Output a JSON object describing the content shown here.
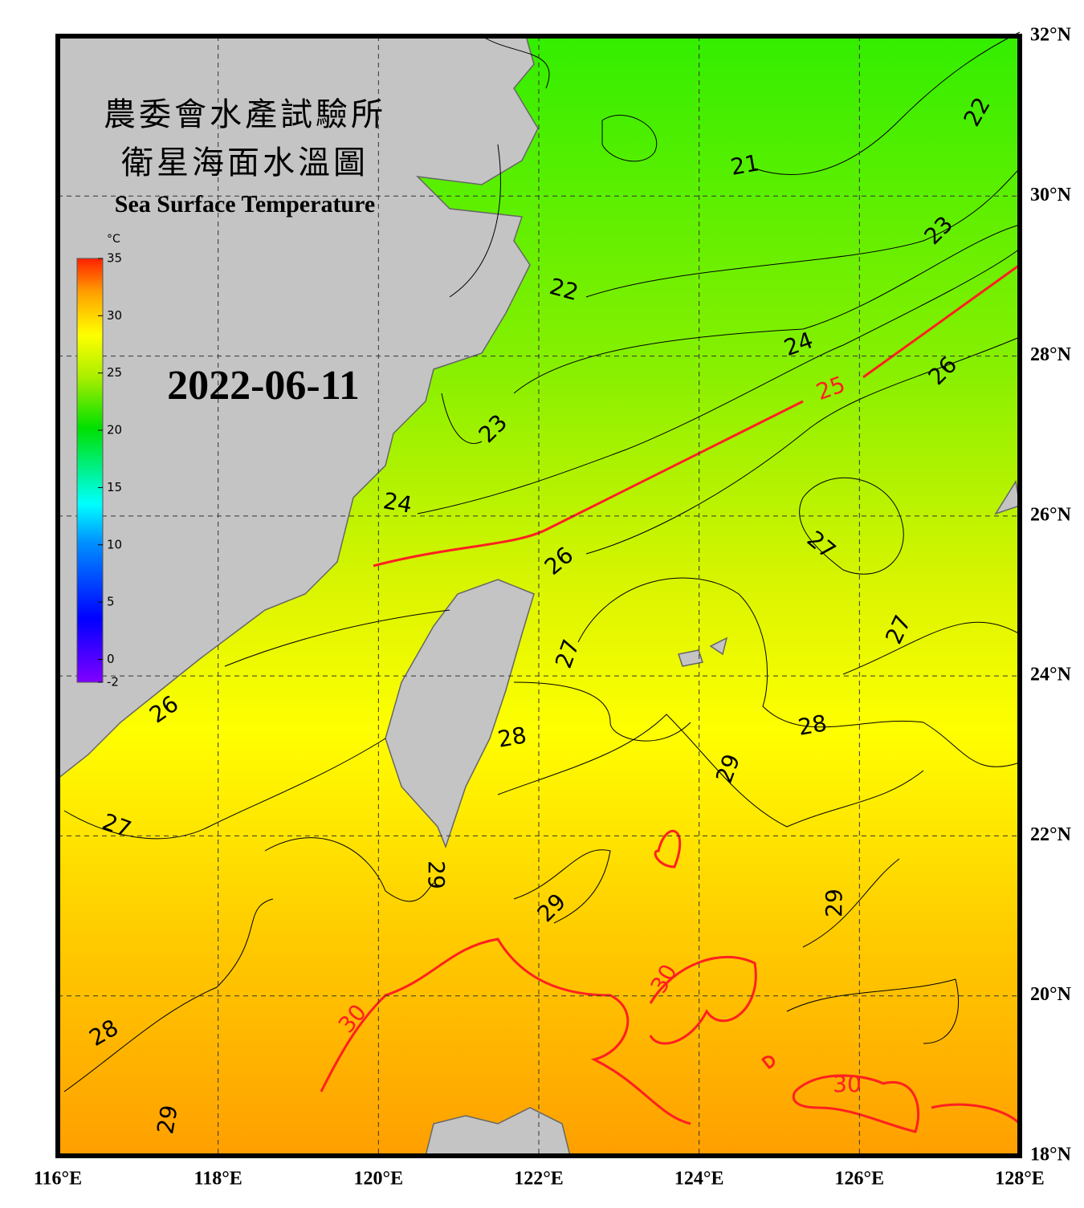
{
  "header": {
    "title_zh_1": "農委會水產試驗所",
    "title_zh_2": "衛星海面水溫圖",
    "title_en": "Sea Surface Temperature",
    "date": "2022-06-11"
  },
  "colorbar": {
    "unit": "°C",
    "range": [
      -2,
      35
    ],
    "ticks": [
      35,
      30,
      25,
      20,
      15,
      10,
      5,
      0,
      -2
    ]
  },
  "map": {
    "xlim": [
      116,
      128
    ],
    "ylim": [
      18,
      32
    ],
    "xticks": [
      {
        "value": 116,
        "label": "116°E"
      },
      {
        "value": 118,
        "label": "118°E"
      },
      {
        "value": 120,
        "label": "120°E"
      },
      {
        "value": 122,
        "label": "122°E"
      },
      {
        "value": 124,
        "label": "124°E"
      },
      {
        "value": 126,
        "label": "126°E"
      },
      {
        "value": 128,
        "label": "128°E"
      }
    ],
    "yticks": [
      {
        "value": 18,
        "label": "18°N"
      },
      {
        "value": 20,
        "label": "20°N"
      },
      {
        "value": 22,
        "label": "22°N"
      },
      {
        "value": 24,
        "label": "24°N"
      },
      {
        "value": 26,
        "label": "26°N"
      },
      {
        "value": 28,
        "label": "28°N"
      },
      {
        "value": 30,
        "label": "30°N"
      },
      {
        "value": 32,
        "label": "32°N"
      }
    ],
    "contour_labels": [
      21,
      22,
      22,
      23,
      23,
      24,
      24,
      25,
      26,
      26,
      27,
      27,
      27,
      27,
      26,
      28,
      28,
      28,
      29,
      29,
      29,
      29,
      29,
      30,
      30,
      30
    ]
  }
}
